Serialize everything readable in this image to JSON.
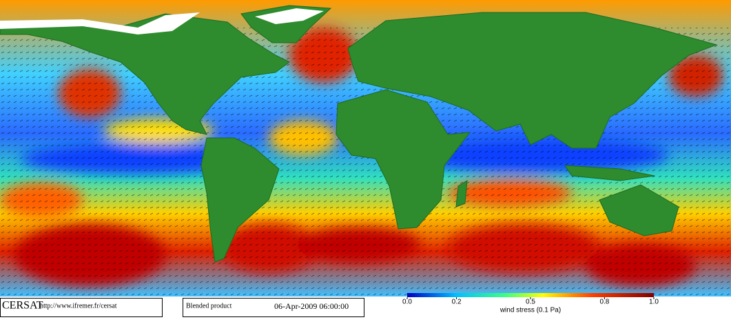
{
  "logo": "CERSAT",
  "url": "http://www.ifremer.fr/cersat",
  "product": "Blended product",
  "date": "06-Apr-2009 06:00:00",
  "colorbar": {
    "label": "wind stress (0.1 Pa)",
    "ticks": [
      {
        "value": 0,
        "label": "0.0"
      },
      0.2,
      0.5,
      0.8,
      {
        "value": 1,
        "label": "1.0"
      }
    ]
  }
}
